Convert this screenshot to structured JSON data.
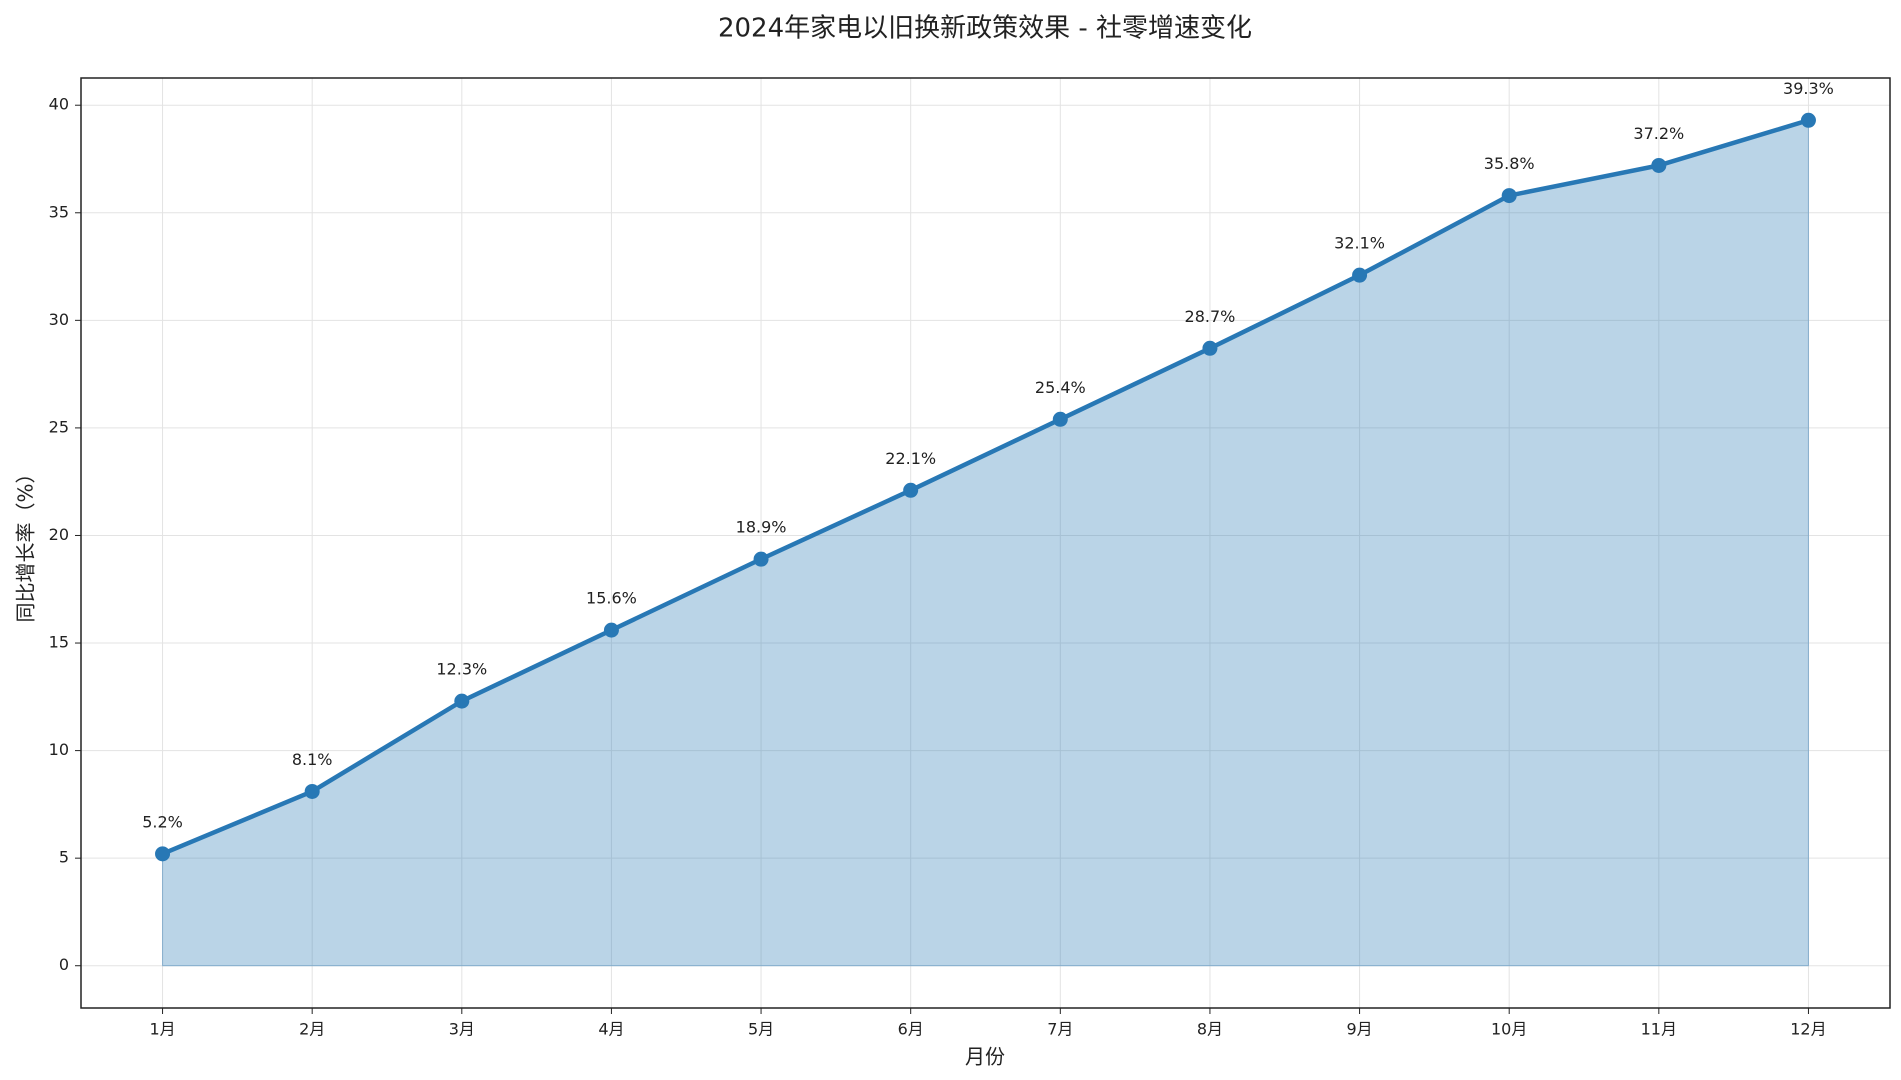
{
  "chart_data": {
    "type": "area-line",
    "title": "2024年家电以旧换新政策效果 - 社零增速变化",
    "x_label": "月份",
    "y_label": "同比增长率（%）",
    "categories": [
      "1月",
      "2月",
      "3月",
      "4月",
      "5月",
      "6月",
      "7月",
      "8月",
      "9月",
      "10月",
      "11月",
      "12月"
    ],
    "values": [
      5.2,
      8.1,
      12.3,
      15.6,
      18.9,
      22.1,
      25.4,
      28.7,
      32.1,
      35.8,
      37.2,
      39.3
    ],
    "value_labels": [
      "5.2%",
      "8.1%",
      "12.3%",
      "15.6%",
      "18.9%",
      "22.1%",
      "25.4%",
      "28.7%",
      "32.1%",
      "35.8%",
      "37.2%",
      "39.3%"
    ],
    "color": "#2878b5",
    "ylim": [
      -1.965,
      41.265
    ],
    "yticks": [
      0,
      5,
      10,
      15,
      20,
      25,
      30,
      35,
      40
    ],
    "grid": true
  }
}
